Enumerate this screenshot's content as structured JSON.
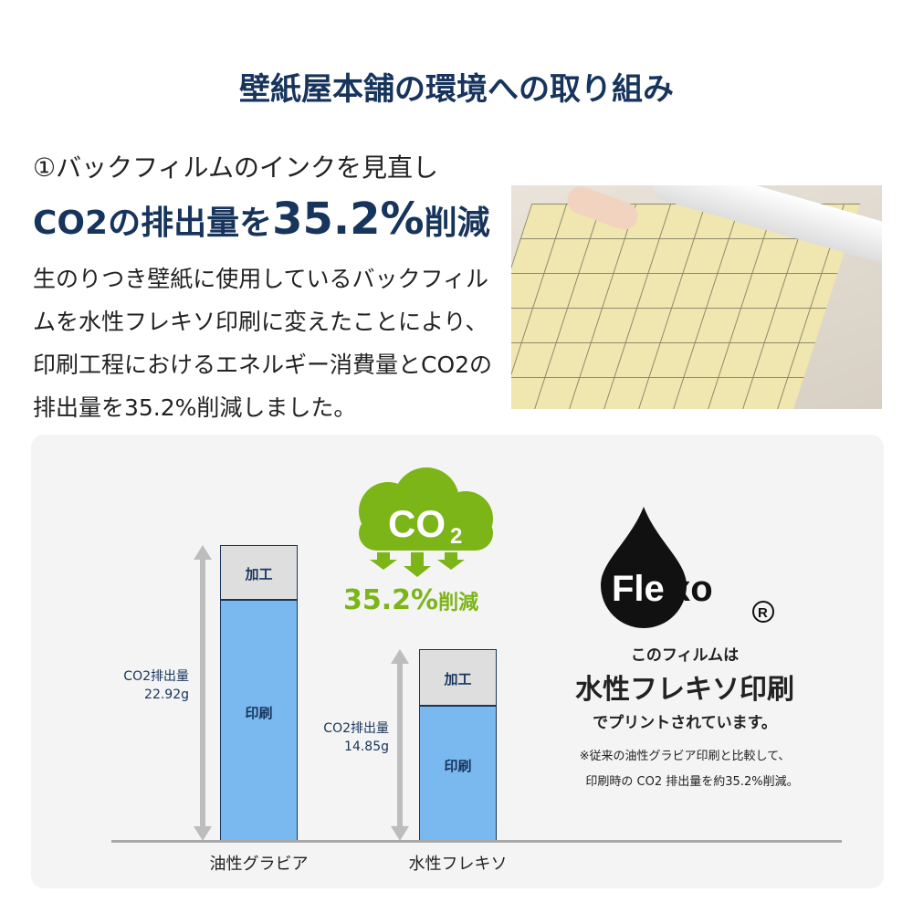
{
  "title": "壁紙屋本舗の環境への取り組み",
  "subtitle": "①バックフィルムのインクを見直し",
  "headline": {
    "pre": "CO2の排出量を",
    "num": "35.2%",
    "post": "削減"
  },
  "body": "生のりつき壁紙に使用しているバックフィルムを水性フレキソ印刷に変えたことにより、印刷工程におけるエネルギー消費量とCO2の排出量を35.2%削減しました。",
  "cloud": {
    "label": "CO2",
    "reduction": "35.2%",
    "reduction_suffix": "削減",
    "color": "#7cb518"
  },
  "chart_data": {
    "type": "bar",
    "stacked": true,
    "categories": [
      "油性グラビア",
      "水性フレキソ"
    ],
    "series": [
      {
        "name": "印刷",
        "values": [
          18.7,
          10.5
        ]
      },
      {
        "name": "加工",
        "values": [
          4.22,
          4.35
        ]
      }
    ],
    "totals_label": [
      "CO2排出量\n22.92g",
      "CO2排出量\n14.85g"
    ],
    "totals": [
      22.92,
      14.85
    ],
    "colors": {
      "印刷": "#7ab8f0",
      "加工": "#dedede"
    }
  },
  "flexo": {
    "logo": "Flexo",
    "registered": "®",
    "line1": "このフィルムは",
    "line2": "水性フレキソ印刷",
    "line3": "でプリントされています。",
    "note1": "※従来の油性グラビア印刷と比較して、",
    "note2": "印刷時の CO2 排出量を約35.2%削減。"
  }
}
